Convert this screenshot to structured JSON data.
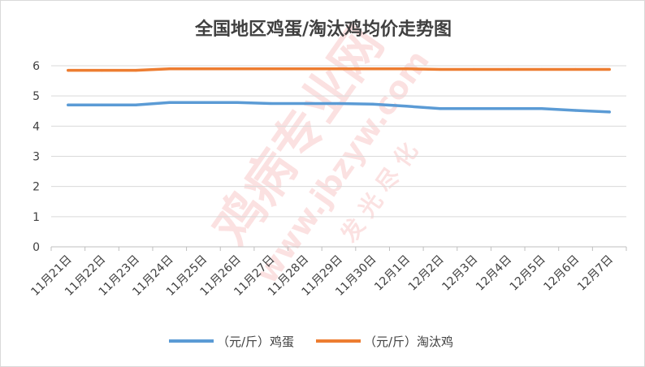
{
  "chart_data": {
    "type": "line",
    "title": "全国地区鸡蛋/淘汰鸡均价走势图",
    "categories": [
      "11月21日",
      "11月22日",
      "11月23日",
      "11月24日",
      "11月25日",
      "11月26日",
      "11月27日",
      "11月28日",
      "11月29日",
      "11月30日",
      "12月1日",
      "12月2日",
      "12月3日",
      "12月4日",
      "12月5日",
      "12月6日",
      "12月7日"
    ],
    "series": [
      {
        "name": "（元/斤）鸡蛋",
        "color": "#5b9bd5",
        "values": [
          4.7,
          4.7,
          4.7,
          4.78,
          4.78,
          4.78,
          4.75,
          4.75,
          4.75,
          4.73,
          4.66,
          4.58,
          4.58,
          4.58,
          4.58,
          4.52,
          4.47
        ]
      },
      {
        "name": "（元/斤）淘汰鸡",
        "color": "#ed7d31",
        "values": [
          5.85,
          5.85,
          5.85,
          5.9,
          5.9,
          5.9,
          5.9,
          5.9,
          5.9,
          5.9,
          5.9,
          5.88,
          5.88,
          5.88,
          5.88,
          5.88,
          5.88
        ]
      }
    ],
    "ylim": [
      0,
      6
    ],
    "yticks": [
      0,
      1,
      2,
      3,
      4,
      5,
      6
    ],
    "grid": true,
    "legend": "bottom"
  },
  "watermark": {
    "main": "鸡病专业网",
    "url": "www.jbzyw.com",
    "sub": "发 光 尽 化"
  }
}
